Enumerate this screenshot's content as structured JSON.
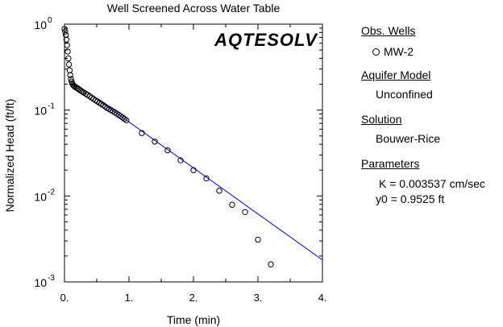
{
  "chart_data": {
    "type": "scatter",
    "title": "Well Screened Across Water Table",
    "xlabel": "Time (min)",
    "ylabel": "Normalized Head (ft/ft)",
    "xlim": [
      0,
      4
    ],
    "ylim": [
      0.001,
      1
    ],
    "yscale": "log",
    "grid": false,
    "x_tick_labels": [
      "0.",
      "1.",
      "2.",
      "3.",
      "4."
    ],
    "y_tick_labels": [
      {
        "base": "10",
        "exp": "0"
      },
      {
        "base": "10",
        "exp": "-1"
      },
      {
        "base": "10",
        "exp": "-2"
      },
      {
        "base": "10",
        "exp": "-3"
      }
    ],
    "series": [
      {
        "name": "MW-2",
        "marker": "open-circle",
        "x": [
          0.0,
          0.01,
          0.02,
          0.03,
          0.04,
          0.05,
          0.06,
          0.07,
          0.08,
          0.09,
          0.1,
          0.11,
          0.12,
          0.13,
          0.14,
          0.15,
          0.16,
          0.18,
          0.2,
          0.22,
          0.24,
          0.26,
          0.28,
          0.3,
          0.33,
          0.36,
          0.39,
          0.42,
          0.45,
          0.48,
          0.51,
          0.54,
          0.57,
          0.6,
          0.63,
          0.66,
          0.69,
          0.72,
          0.75,
          0.78,
          0.81,
          0.84,
          0.87,
          0.9,
          0.93,
          0.96,
          1.2,
          1.4,
          1.6,
          1.8,
          2.0,
          2.2,
          2.4,
          2.6,
          2.8,
          3.0,
          3.2
        ],
        "y": [
          0.88,
          0.82,
          0.75,
          0.66,
          0.57,
          0.48,
          0.4,
          0.34,
          0.29,
          0.255,
          0.23,
          0.215,
          0.205,
          0.198,
          0.193,
          0.19,
          0.187,
          0.183,
          0.179,
          0.175,
          0.171,
          0.167,
          0.163,
          0.16,
          0.155,
          0.15,
          0.145,
          0.14,
          0.135,
          0.13,
          0.126,
          0.122,
          0.118,
          0.114,
          0.11,
          0.106,
          0.103,
          0.1,
          0.097,
          0.094,
          0.091,
          0.088,
          0.085,
          0.082,
          0.079,
          0.076,
          0.054,
          0.043,
          0.034,
          0.026,
          0.02,
          0.016,
          0.0115,
          0.0079,
          0.0065,
          0.0031,
          0.0016
        ]
      },
      {
        "name": "",
        "type": "line",
        "color": "#0000ff",
        "x": [
          0.18,
          4.0
        ],
        "y": [
          0.2,
          0.0018
        ]
      }
    ],
    "logo": "AQTESOLV",
    "logo_color": "#0000ff"
  },
  "legend": {
    "obs_wells_title": "Obs. Wells",
    "well_name": "MW-2",
    "aquifer_title": "Aquifer Model",
    "aquifer_value": "Unconfined",
    "solution_title": "Solution",
    "solution_value": "Bouwer-Rice",
    "parameters_title": "Parameters",
    "param_k": "K  = 0.003537 cm/sec",
    "param_y0": "y0 = 0.9525 ft"
  }
}
